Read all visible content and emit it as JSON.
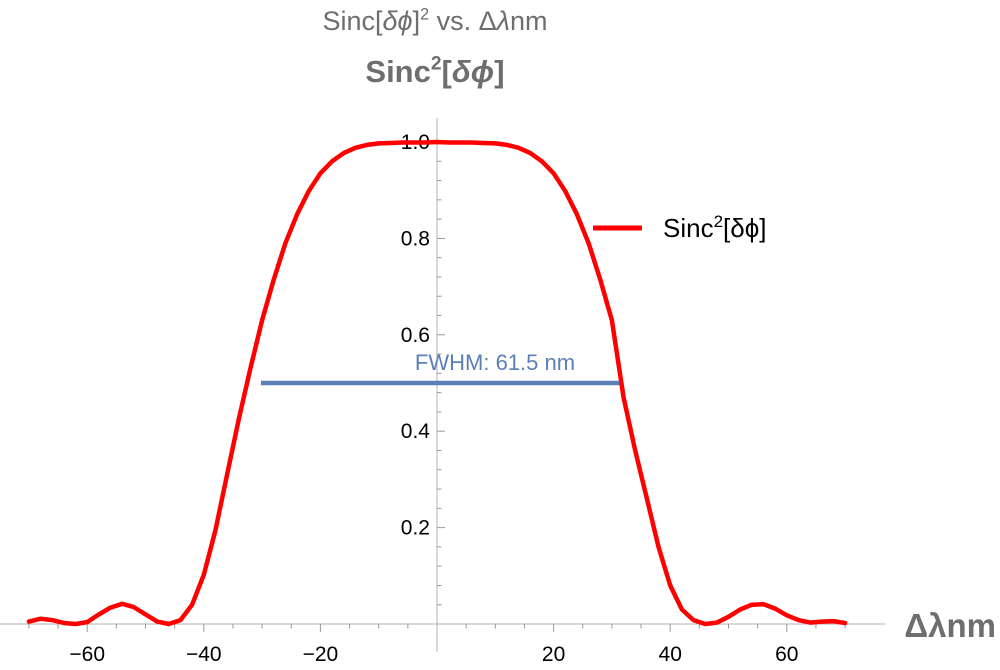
{
  "chart_data": {
    "type": "line",
    "title_main": "Sinc[δϕ]² vs. Δλnm",
    "title_sub": "Sinc²[δϕ]",
    "xlabel": "Δλnm",
    "ylabel": "",
    "xlim": [
      -70,
      70
    ],
    "ylim": [
      0,
      1.0
    ],
    "x_ticks": [
      -60,
      -40,
      -20,
      20,
      40,
      60
    ],
    "x_tick_labels": [
      "−60",
      "−40",
      "−20",
      "20",
      "40",
      "60"
    ],
    "y_ticks": [
      0.2,
      0.4,
      0.6,
      0.8,
      1.0
    ],
    "y_tick_labels": [
      "0.2",
      "0.4",
      "0.6",
      "0.8",
      "1.0"
    ],
    "legend": {
      "position": "right",
      "entries": [
        {
          "label": "Sinc²[δϕ]",
          "color": "#ff0000"
        }
      ]
    },
    "series": [
      {
        "name": "Sinc²[δϕ]",
        "color": "#ff0000",
        "x": [
          -70,
          -68,
          -66,
          -64,
          -62,
          -60,
          -58,
          -56,
          -54,
          -52,
          -50,
          -48,
          -46,
          -44,
          -42,
          -40,
          -38,
          -36,
          -34,
          -32,
          -30,
          -28,
          -26,
          -24,
          -22,
          -20,
          -18,
          -16,
          -14,
          -12,
          -10,
          -8,
          -6,
          -4,
          -2,
          0,
          2,
          4,
          6,
          8,
          10,
          12,
          14,
          16,
          18,
          20,
          22,
          24,
          26,
          28,
          30,
          32,
          34,
          36,
          38,
          40,
          42,
          44,
          46,
          48,
          50,
          52,
          54,
          56,
          58,
          60,
          62,
          64,
          66,
          68,
          70
        ],
        "y": [
          0.005,
          0.011,
          0.008,
          0.002,
          0.0,
          0.004,
          0.02,
          0.034,
          0.042,
          0.035,
          0.02,
          0.005,
          0.0,
          0.008,
          0.04,
          0.102,
          0.195,
          0.31,
          0.425,
          0.53,
          0.63,
          0.715,
          0.79,
          0.85,
          0.898,
          0.935,
          0.96,
          0.977,
          0.988,
          0.994,
          0.997,
          0.998,
          0.999,
          0.999,
          0.999,
          1.0,
          0.999,
          0.999,
          0.999,
          0.998,
          0.997,
          0.994,
          0.988,
          0.977,
          0.96,
          0.935,
          0.898,
          0.85,
          0.79,
          0.715,
          0.63,
          0.47,
          0.36,
          0.26,
          0.16,
          0.08,
          0.03,
          0.008,
          0.0,
          0.003,
          0.015,
          0.03,
          0.04,
          0.041,
          0.032,
          0.018,
          0.008,
          0.003,
          0.005,
          0.006,
          0.002
        ]
      }
    ],
    "annotations": [
      {
        "type": "hline",
        "label": "FWHM: 61.5 nm",
        "x_start": -30.2,
        "x_end": 31.3,
        "y": 0.5,
        "color": "#5b80b8"
      }
    ]
  }
}
